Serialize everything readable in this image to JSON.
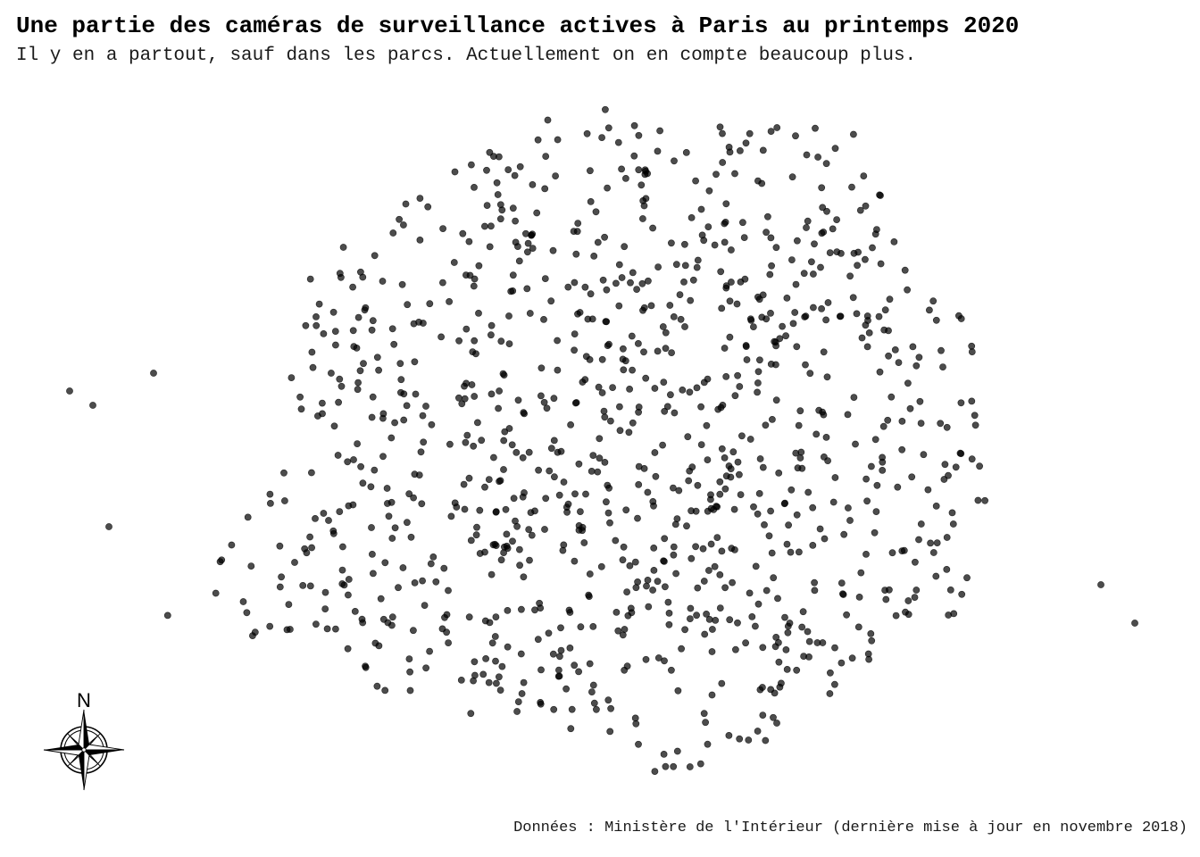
{
  "map": {
    "title": "Une partie des caméras de surveillance actives à Paris au printemps 2020",
    "subtitle": "Il y en a partout, sauf dans les parcs. Actuellement on en compte beaucoup plus.",
    "caption": "Données : Ministère de l'Intérieur (dernière mise à jour en novembre 2018)",
    "north_label": "N",
    "point_color": "#000000",
    "background_color": "#ffffff"
  }
}
